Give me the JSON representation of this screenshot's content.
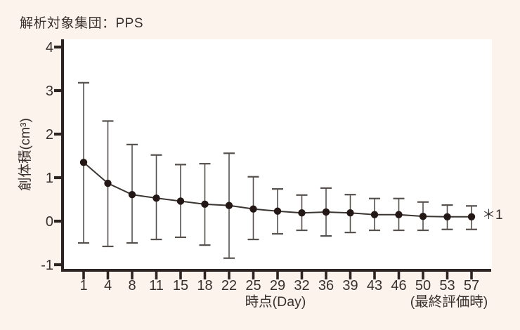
{
  "page": {
    "background_color": "#fcf4ec"
  },
  "chart_data": {
    "type": "line",
    "title": "解析対象集団：PPS",
    "ylabel": "創体積(cm³)",
    "xlabel": "時点(Day)",
    "xlabel_note": "(最終評価時)",
    "annotation": "＊1",
    "x_labels": [
      "1",
      "4",
      "8",
      "11",
      "15",
      "18",
      "22",
      "25",
      "29",
      "32",
      "36",
      "39",
      "43",
      "46",
      "50",
      "53",
      "57"
    ],
    "values": [
      1.35,
      0.87,
      0.61,
      0.53,
      0.46,
      0.39,
      0.36,
      0.28,
      0.23,
      0.19,
      0.21,
      0.19,
      0.15,
      0.15,
      0.11,
      0.1,
      0.1
    ],
    "error_upper": [
      3.18,
      2.3,
      1.76,
      1.52,
      1.3,
      1.32,
      1.56,
      1.02,
      0.74,
      0.6,
      0.76,
      0.61,
      0.52,
      0.52,
      0.44,
      0.37,
      0.35
    ],
    "error_lower": [
      -0.5,
      -0.58,
      -0.5,
      -0.42,
      -0.37,
      -0.55,
      -0.85,
      -0.42,
      -0.29,
      -0.21,
      -0.34,
      -0.26,
      -0.21,
      -0.21,
      -0.21,
      -0.19,
      -0.19
    ],
    "yticks": [
      4,
      3,
      2,
      1,
      0,
      -1
    ],
    "ylim": [
      -1.13,
      4.18
    ],
    "grid": false,
    "legend": "none",
    "colors": {
      "marker": "#231815",
      "series_line": "#3a3531",
      "error_bar": "#57514e",
      "axis": "#2b2422",
      "text": "#38302c",
      "plot_background": "#ffffff",
      "page_background": "#fcf4ec"
    }
  }
}
